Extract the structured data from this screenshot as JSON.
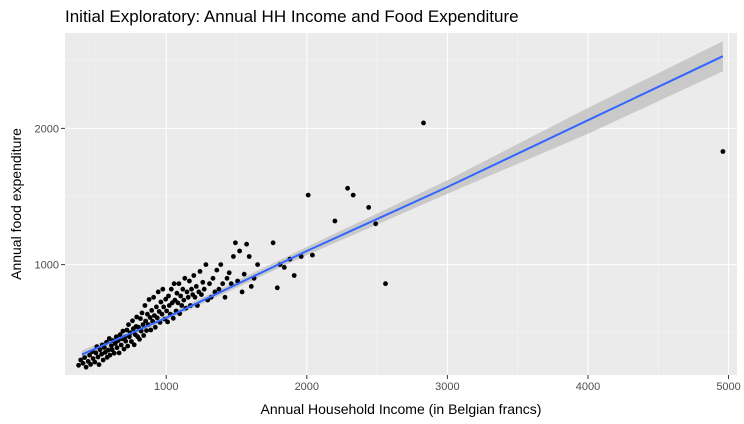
{
  "chart_data": {
    "type": "scatter",
    "title": "Initial Exploratory: Annual HH Income and Food Expenditure",
    "xlabel": "Annual Household Income (in Belgian francs)",
    "ylabel": "Annual food expenditure",
    "xlim": [
      280,
      5060
    ],
    "ylim": [
      190,
      2700
    ],
    "x_ticks": [
      1000,
      2000,
      3000,
      4000,
      5000
    ],
    "y_ticks": [
      1000,
      2000
    ],
    "grid": true,
    "legend": "none",
    "colors": {
      "panel": "#ebebeb",
      "grid_major": "#ffffff",
      "grid_minor": "#f5f5f5",
      "point": "#000000",
      "fit_line": "#3366ff",
      "band": "#bdbdbd"
    },
    "fit": {
      "method": "linear",
      "x": [
        400,
        1000,
        2000,
        3000,
        4000,
        4960
      ],
      "y": [
        340,
        610,
        1100,
        1570,
        2060,
        2530
      ],
      "lower": [
        310,
        590,
        1070,
        1520,
        1960,
        2420
      ],
      "upper": [
        370,
        630,
        1130,
        1620,
        2150,
        2640
      ]
    },
    "points": [
      [
        377,
        261
      ],
      [
        392,
        300
      ],
      [
        408,
        276
      ],
      [
        420,
        318
      ],
      [
        430,
        247
      ],
      [
        445,
        290
      ],
      [
        455,
        335
      ],
      [
        462,
        268
      ],
      [
        475,
        362
      ],
      [
        480,
        310
      ],
      [
        492,
        285
      ],
      [
        500,
        352
      ],
      [
        506,
        398
      ],
      [
        515,
        322
      ],
      [
        522,
        266
      ],
      [
        530,
        375
      ],
      [
        540,
        343
      ],
      [
        545,
        410
      ],
      [
        552,
        300
      ],
      [
        560,
        392
      ],
      [
        566,
        356
      ],
      [
        575,
        430
      ],
      [
        580,
        320
      ],
      [
        588,
        372
      ],
      [
        595,
        458
      ],
      [
        600,
        336
      ],
      [
        610,
        404
      ],
      [
        615,
        376
      ],
      [
        622,
        442
      ],
      [
        630,
        350
      ],
      [
        638,
        422
      ],
      [
        645,
        470
      ],
      [
        650,
        390
      ],
      [
        658,
        442
      ],
      [
        665,
        352
      ],
      [
        672,
        486
      ],
      [
        680,
        410
      ],
      [
        686,
        456
      ],
      [
        692,
        512
      ],
      [
        700,
        380
      ],
      [
        706,
        468
      ],
      [
        712,
        438
      ],
      [
        720,
        520
      ],
      [
        726,
        402
      ],
      [
        732,
        560
      ],
      [
        738,
        470
      ],
      [
        745,
        500
      ],
      [
        752,
        436
      ],
      [
        760,
        588
      ],
      [
        766,
        530
      ],
      [
        772,
        412
      ],
      [
        780,
        486
      ],
      [
        786,
        546
      ],
      [
        790,
        616
      ],
      [
        797,
        470
      ],
      [
        803,
        540
      ],
      [
        810,
        452
      ],
      [
        816,
        604
      ],
      [
        822,
        512
      ],
      [
        828,
        646
      ],
      [
        835,
        560
      ],
      [
        840,
        480
      ],
      [
        848,
        700
      ],
      [
        853,
        586
      ],
      [
        860,
        516
      ],
      [
        866,
        636
      ],
      [
        872,
        560
      ],
      [
        878,
        744
      ],
      [
        885,
        612
      ],
      [
        890,
        520
      ],
      [
        897,
        664
      ],
      [
        903,
        584
      ],
      [
        910,
        760
      ],
      [
        916,
        626
      ],
      [
        922,
        540
      ],
      [
        930,
        690
      ],
      [
        936,
        610
      ],
      [
        943,
        800
      ],
      [
        950,
        656
      ],
      [
        956,
        576
      ],
      [
        962,
        726
      ],
      [
        970,
        636
      ],
      [
        976,
        820
      ],
      [
        982,
        690
      ],
      [
        990,
        600
      ],
      [
        996,
        746
      ],
      [
        1003,
        660
      ],
      [
        1010,
        580
      ],
      [
        1016,
        770
      ],
      [
        1022,
        700
      ],
      [
        1030,
        636
      ],
      [
        1036,
        820
      ],
      [
        1043,
        720
      ],
      [
        1050,
        606
      ],
      [
        1056,
        860
      ],
      [
        1062,
        740
      ],
      [
        1070,
        660
      ],
      [
        1076,
        790
      ],
      [
        1083,
        720
      ],
      [
        1090,
        860
      ],
      [
        1096,
        640
      ],
      [
        1103,
        770
      ],
      [
        1110,
        700
      ],
      [
        1118,
        820
      ],
      [
        1125,
        740
      ],
      [
        1132,
        900
      ],
      [
        1140,
        680
      ],
      [
        1148,
        800
      ],
      [
        1156,
        760
      ],
      [
        1165,
        880
      ],
      [
        1172,
        700
      ],
      [
        1180,
        820
      ],
      [
        1188,
        780
      ],
      [
        1196,
        920
      ],
      [
        1205,
        760
      ],
      [
        1214,
        840
      ],
      [
        1222,
        700
      ],
      [
        1232,
        800
      ],
      [
        1240,
        950
      ],
      [
        1250,
        780
      ],
      [
        1260,
        870
      ],
      [
        1270,
        820
      ],
      [
        1282,
        1000
      ],
      [
        1295,
        740
      ],
      [
        1308,
        860
      ],
      [
        1320,
        760
      ],
      [
        1333,
        900
      ],
      [
        1346,
        800
      ],
      [
        1360,
        960
      ],
      [
        1375,
        820
      ],
      [
        1388,
        1000
      ],
      [
        1402,
        860
      ],
      [
        1418,
        760
      ],
      [
        1432,
        900
      ],
      [
        1448,
        940
      ],
      [
        1462,
        860
      ],
      [
        1478,
        1060
      ],
      [
        1492,
        1160
      ],
      [
        1508,
        880
      ],
      [
        1522,
        1100
      ],
      [
        1540,
        800
      ],
      [
        1555,
        930
      ],
      [
        1572,
        1150
      ],
      [
        1590,
        1060
      ],
      [
        1605,
        840
      ],
      [
        1625,
        900
      ],
      [
        1650,
        1000
      ],
      [
        1760,
        1160
      ],
      [
        1790,
        830
      ],
      [
        1810,
        1000
      ],
      [
        1840,
        980
      ],
      [
        1880,
        1040
      ],
      [
        1910,
        920
      ],
      [
        1960,
        1060
      ],
      [
        2010,
        1510
      ],
      [
        2040,
        1070
      ],
      [
        2200,
        1320
      ],
      [
        2290,
        1560
      ],
      [
        2330,
        1510
      ],
      [
        2440,
        1420
      ],
      [
        2490,
        1300
      ],
      [
        2560,
        860
      ],
      [
        2830,
        2040
      ],
      [
        4960,
        1830
      ]
    ]
  }
}
